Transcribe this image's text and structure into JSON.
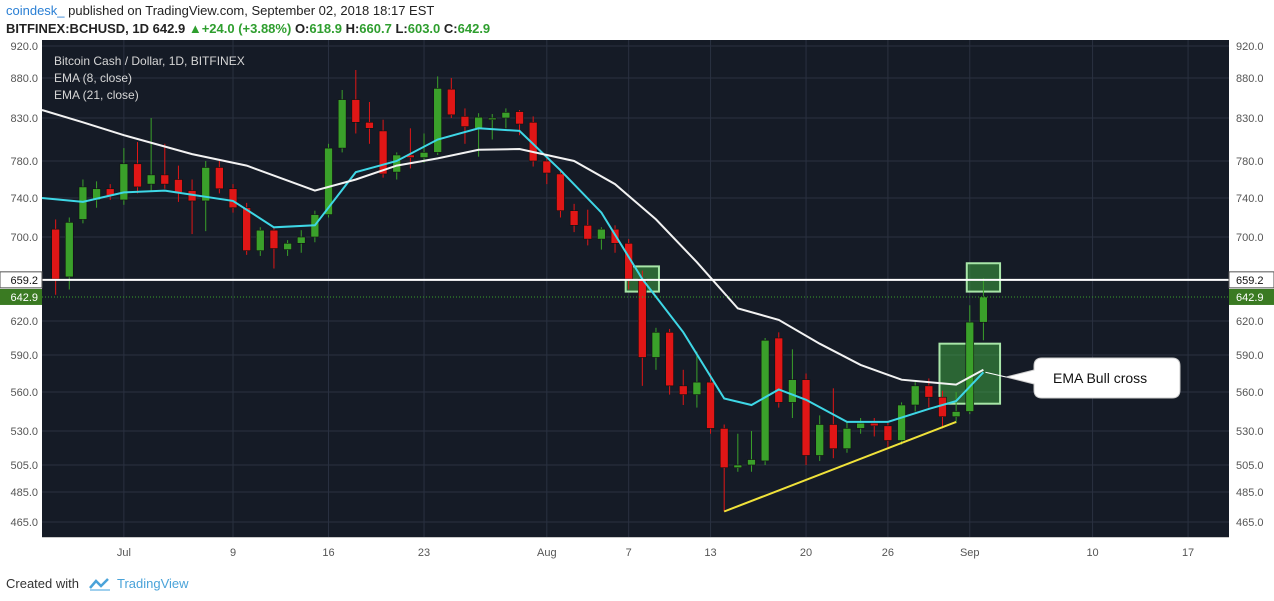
{
  "header": {
    "author": "coindesk_",
    "published": " published on TradingView.com, September 02, 2018 18:17 EST",
    "symbol": "BITFINEX:BCHUSD, 1D",
    "last": "642.9",
    "change": "+24.0 (+3.88%)",
    "o_label": "O:",
    "o_value": "618.9",
    "h_label": "H:",
    "h_value": "660.7",
    "l_label": "L:",
    "l_value": "603.0",
    "c_label": "C:",
    "c_value": "642.9"
  },
  "legend": {
    "title": "Bitcoin Cash / Dollar, 1D, BITFINEX",
    "ema8": "EMA (8, close)",
    "ema21": "EMA (21, close)"
  },
  "annotation": {
    "label": "EMA Bull cross"
  },
  "footer": {
    "created": "Created with",
    "brand": "TradingView"
  },
  "colors": {
    "background": "#151b26",
    "up": "#3aa02a",
    "down": "#e01616",
    "ema8": "#3ed7e6",
    "ema21": "#f2f2f2",
    "trendline": "#f0e23a",
    "resistance": "#ffffff",
    "highlight": "#46c246"
  },
  "chart_data": {
    "type": "candlestick",
    "y_axis": {
      "ticks": [
        "920.0",
        "880.0",
        "830.0",
        "780.0",
        "740.0",
        "700.0",
        "620.0",
        "590.0",
        "560.0",
        "530.0",
        "505.0",
        "485.0",
        "465.0"
      ],
      "tick_values": [
        920,
        880,
        830,
        780,
        740,
        700,
        620,
        590,
        560,
        530,
        505,
        485,
        465
      ],
      "range": [
        452,
        925
      ]
    },
    "x_axis": {
      "ticks": [
        "Jul",
        "9",
        "16",
        "23",
        "Aug",
        "7",
        "13",
        "20",
        "26",
        "Sep",
        "10",
        "17"
      ],
      "tick_dates": [
        "2018-07-01",
        "2018-07-09",
        "2018-07-16",
        "2018-07-23",
        "2018-08-01",
        "2018-08-07",
        "2018-08-13",
        "2018-08-20",
        "2018-08-26",
        "2018-09-01",
        "2018-09-10",
        "2018-09-17"
      ],
      "range": [
        "2018-06-25",
        "2018-09-20"
      ]
    },
    "price_labels": [
      {
        "label": "659.2",
        "value": 659.2,
        "kind": "resistance"
      },
      {
        "label": "642.9",
        "value": 642.9,
        "kind": "last"
      }
    ],
    "candles": [
      {
        "date": "2018-06-26",
        "o": 708,
        "h": 718,
        "l": 645,
        "c": 660
      },
      {
        "date": "2018-06-27",
        "o": 662,
        "h": 720,
        "l": 650,
        "c": 715
      },
      {
        "date": "2018-06-28",
        "o": 718,
        "h": 760,
        "l": 714,
        "c": 752
      },
      {
        "date": "2018-06-29",
        "o": 738,
        "h": 758,
        "l": 730,
        "c": 750
      },
      {
        "date": "2018-06-30",
        "o": 750,
        "h": 755,
        "l": 738,
        "c": 742
      },
      {
        "date": "2018-07-01",
        "o": 738,
        "h": 795,
        "l": 733,
        "c": 777
      },
      {
        "date": "2018-07-02",
        "o": 777,
        "h": 802,
        "l": 745,
        "c": 752
      },
      {
        "date": "2018-07-03",
        "o": 755,
        "h": 830,
        "l": 748,
        "c": 765
      },
      {
        "date": "2018-07-04",
        "o": 765,
        "h": 800,
        "l": 750,
        "c": 755
      },
      {
        "date": "2018-07-05",
        "o": 760,
        "h": 775,
        "l": 736,
        "c": 746
      },
      {
        "date": "2018-07-06",
        "o": 748,
        "h": 760,
        "l": 703,
        "c": 737
      },
      {
        "date": "2018-07-07",
        "o": 737,
        "h": 780,
        "l": 706,
        "c": 773
      },
      {
        "date": "2018-07-08",
        "o": 773,
        "h": 780,
        "l": 745,
        "c": 750
      },
      {
        "date": "2018-07-09",
        "o": 750,
        "h": 755,
        "l": 725,
        "c": 730
      },
      {
        "date": "2018-07-10",
        "o": 730,
        "h": 735,
        "l": 683,
        "c": 687
      },
      {
        "date": "2018-07-11",
        "o": 687,
        "h": 710,
        "l": 682,
        "c": 707
      },
      {
        "date": "2018-07-12",
        "o": 707,
        "h": 710,
        "l": 670,
        "c": 689
      },
      {
        "date": "2018-07-13",
        "o": 688,
        "h": 697,
        "l": 682,
        "c": 694
      },
      {
        "date": "2018-07-14",
        "o": 694,
        "h": 707,
        "l": 685,
        "c": 700
      },
      {
        "date": "2018-07-15",
        "o": 700,
        "h": 727,
        "l": 695,
        "c": 723
      },
      {
        "date": "2018-07-16",
        "o": 723,
        "h": 800,
        "l": 720,
        "c": 795
      },
      {
        "date": "2018-07-17",
        "o": 795,
        "h": 865,
        "l": 790,
        "c": 853
      },
      {
        "date": "2018-07-18",
        "o": 853,
        "h": 890,
        "l": 812,
        "c": 825
      },
      {
        "date": "2018-07-19",
        "o": 825,
        "h": 850,
        "l": 800,
        "c": 818
      },
      {
        "date": "2018-07-20",
        "o": 815,
        "h": 828,
        "l": 762,
        "c": 766
      },
      {
        "date": "2018-07-21",
        "o": 768,
        "h": 790,
        "l": 760,
        "c": 787
      },
      {
        "date": "2018-07-22",
        "o": 787,
        "h": 818,
        "l": 772,
        "c": 784
      },
      {
        "date": "2018-07-23",
        "o": 784,
        "h": 812,
        "l": 778,
        "c": 790
      },
      {
        "date": "2018-07-24",
        "o": 790,
        "h": 882,
        "l": 787,
        "c": 867
      },
      {
        "date": "2018-07-25",
        "o": 866,
        "h": 880,
        "l": 830,
        "c": 834
      },
      {
        "date": "2018-07-26",
        "o": 832,
        "h": 842,
        "l": 800,
        "c": 820
      },
      {
        "date": "2018-07-27",
        "o": 818,
        "h": 836,
        "l": 785,
        "c": 831
      },
      {
        "date": "2018-07-28",
        "o": 828,
        "h": 835,
        "l": 805,
        "c": 830
      },
      {
        "date": "2018-07-29",
        "o": 830,
        "h": 842,
        "l": 818,
        "c": 837
      },
      {
        "date": "2018-07-30",
        "o": 838,
        "h": 840,
        "l": 810,
        "c": 823
      },
      {
        "date": "2018-07-31",
        "o": 825,
        "h": 832,
        "l": 774,
        "c": 780
      },
      {
        "date": "2018-08-01",
        "o": 780,
        "h": 785,
        "l": 755,
        "c": 767
      },
      {
        "date": "2018-08-02",
        "o": 766,
        "h": 770,
        "l": 720,
        "c": 727
      },
      {
        "date": "2018-08-03",
        "o": 727,
        "h": 734,
        "l": 705,
        "c": 712
      },
      {
        "date": "2018-08-04",
        "o": 712,
        "h": 728,
        "l": 692,
        "c": 698
      },
      {
        "date": "2018-08-05",
        "o": 698,
        "h": 710,
        "l": 688,
        "c": 708
      },
      {
        "date": "2018-08-06",
        "o": 708,
        "h": 712,
        "l": 685,
        "c": 694
      },
      {
        "date": "2018-08-07",
        "o": 694,
        "h": 698,
        "l": 650,
        "c": 660
      },
      {
        "date": "2018-08-08",
        "o": 660,
        "h": 668,
        "l": 565,
        "c": 588
      },
      {
        "date": "2018-08-09",
        "o": 588,
        "h": 614,
        "l": 578,
        "c": 610
      },
      {
        "date": "2018-08-10",
        "o": 610,
        "h": 613,
        "l": 558,
        "c": 565
      },
      {
        "date": "2018-08-11",
        "o": 565,
        "h": 578,
        "l": 550,
        "c": 558
      },
      {
        "date": "2018-08-12",
        "o": 558,
        "h": 593,
        "l": 548,
        "c": 568
      },
      {
        "date": "2018-08-13",
        "o": 568,
        "h": 575,
        "l": 528,
        "c": 532
      },
      {
        "date": "2018-08-14",
        "o": 532,
        "h": 535,
        "l": 472,
        "c": 503
      },
      {
        "date": "2018-08-15",
        "o": 503,
        "h": 528,
        "l": 500,
        "c": 505
      },
      {
        "date": "2018-08-16",
        "o": 505,
        "h": 530,
        "l": 500,
        "c": 509
      },
      {
        "date": "2018-08-17",
        "o": 508,
        "h": 605,
        "l": 505,
        "c": 603
      },
      {
        "date": "2018-08-18",
        "o": 605,
        "h": 610,
        "l": 548,
        "c": 552
      },
      {
        "date": "2018-08-19",
        "o": 552,
        "h": 595,
        "l": 540,
        "c": 570
      },
      {
        "date": "2018-08-20",
        "o": 570,
        "h": 575,
        "l": 505,
        "c": 512
      },
      {
        "date": "2018-08-21",
        "o": 512,
        "h": 542,
        "l": 508,
        "c": 535
      },
      {
        "date": "2018-08-22",
        "o": 535,
        "h": 563,
        "l": 510,
        "c": 517
      },
      {
        "date": "2018-08-23",
        "o": 517,
        "h": 537,
        "l": 514,
        "c": 532
      },
      {
        "date": "2018-08-24",
        "o": 532,
        "h": 540,
        "l": 528,
        "c": 536
      },
      {
        "date": "2018-08-25",
        "o": 536,
        "h": 540,
        "l": 526,
        "c": 534
      },
      {
        "date": "2018-08-26",
        "o": 534,
        "h": 537,
        "l": 518,
        "c": 523
      },
      {
        "date": "2018-08-27",
        "o": 523,
        "h": 552,
        "l": 520,
        "c": 550
      },
      {
        "date": "2018-08-28",
        "o": 550,
        "h": 568,
        "l": 545,
        "c": 565
      },
      {
        "date": "2018-08-29",
        "o": 565,
        "h": 571,
        "l": 548,
        "c": 556
      },
      {
        "date": "2018-08-30",
        "o": 556,
        "h": 561,
        "l": 532,
        "c": 541
      },
      {
        "date": "2018-08-31",
        "o": 541,
        "h": 560,
        "l": 536,
        "c": 545
      },
      {
        "date": "2018-09-01",
        "o": 545,
        "h": 635,
        "l": 543,
        "c": 619
      },
      {
        "date": "2018-09-02",
        "o": 618.9,
        "h": 660.7,
        "l": 603.0,
        "c": 642.9
      }
    ],
    "series": [
      {
        "name": "EMA (8, close)",
        "color": "#3ed7e6",
        "points": [
          [
            "2018-06-25",
            740
          ],
          [
            "2018-06-28",
            736
          ],
          [
            "2018-07-01",
            746
          ],
          [
            "2018-07-04",
            748
          ],
          [
            "2018-07-09",
            737
          ],
          [
            "2018-07-12",
            710
          ],
          [
            "2018-07-15",
            712
          ],
          [
            "2018-07-18",
            768
          ],
          [
            "2018-07-21",
            780
          ],
          [
            "2018-07-24",
            805
          ],
          [
            "2018-07-27",
            818
          ],
          [
            "2018-07-30",
            815
          ],
          [
            "2018-08-02",
            770
          ],
          [
            "2018-08-05",
            725
          ],
          [
            "2018-08-08",
            660
          ],
          [
            "2018-08-11",
            610
          ],
          [
            "2018-08-14",
            555
          ],
          [
            "2018-08-16",
            550
          ],
          [
            "2018-08-18",
            562
          ],
          [
            "2018-08-20",
            554
          ],
          [
            "2018-08-23",
            537
          ],
          [
            "2018-08-26",
            537
          ],
          [
            "2018-08-29",
            547
          ],
          [
            "2018-08-31",
            553
          ],
          [
            "2018-09-02",
            576
          ]
        ]
      },
      {
        "name": "EMA (21, close)",
        "color": "#f2f2f2",
        "points": [
          [
            "2018-06-25",
            840
          ],
          [
            "2018-06-28",
            825
          ],
          [
            "2018-07-01",
            810
          ],
          [
            "2018-07-06",
            788
          ],
          [
            "2018-07-10",
            775
          ],
          [
            "2018-07-15",
            748
          ],
          [
            "2018-07-18",
            760
          ],
          [
            "2018-07-21",
            775
          ],
          [
            "2018-07-24",
            783
          ],
          [
            "2018-07-27",
            793
          ],
          [
            "2018-07-30",
            794
          ],
          [
            "2018-08-03",
            780
          ],
          [
            "2018-08-06",
            755
          ],
          [
            "2018-08-09",
            718
          ],
          [
            "2018-08-12",
            676
          ],
          [
            "2018-08-15",
            632
          ],
          [
            "2018-08-18",
            621
          ],
          [
            "2018-08-21",
            600
          ],
          [
            "2018-08-24",
            582
          ],
          [
            "2018-08-27",
            570
          ],
          [
            "2018-08-31",
            566
          ],
          [
            "2018-09-02",
            578
          ]
        ]
      }
    ],
    "annotations": {
      "resistance_line": 659.2,
      "trendline": [
        [
          "2018-08-14",
          472
        ],
        [
          "2018-08-31",
          537
        ]
      ],
      "boxes": [
        {
          "date_from": "2018-08-07",
          "date_to": "2018-08-09",
          "low": 648,
          "high": 672
        },
        {
          "date_from": "2018-09-01",
          "date_to": "2018-09-03",
          "low": 648,
          "high": 675
        },
        {
          "date_from": "2018-08-30",
          "date_to": "2018-09-03",
          "low": 551,
          "high": 600
        }
      ],
      "arrow_target": [
        "2018-09-02",
        576
      ]
    }
  }
}
